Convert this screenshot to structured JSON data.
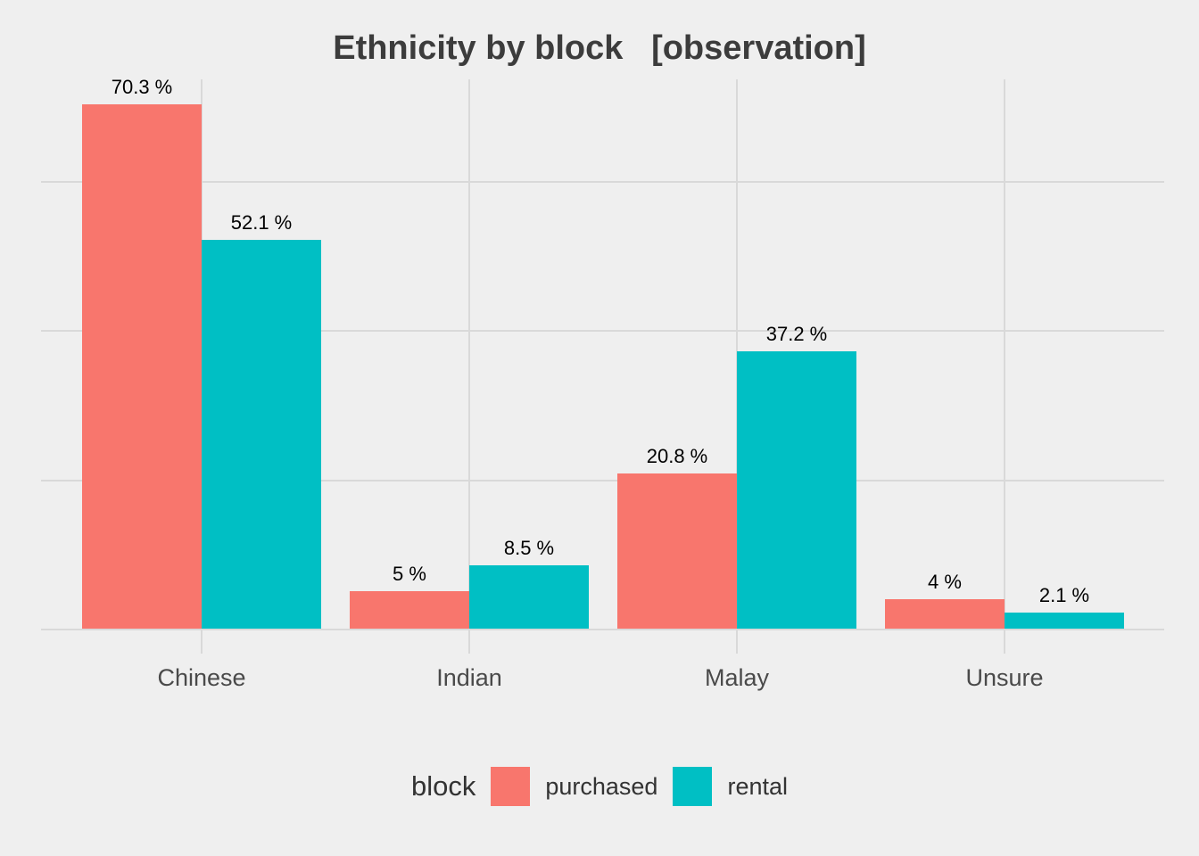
{
  "title": "Ethnicity by block   [observation]",
  "legend": {
    "title": "block",
    "items": [
      {
        "label": "purchased",
        "color": "#F8766D"
      },
      {
        "label": "rental",
        "color": "#00BFC4"
      }
    ]
  },
  "chart_data": {
    "type": "bar",
    "title": "Ethnicity by block   [observation]",
    "categories": [
      "Chinese",
      "Indian",
      "Malay",
      "Unsure"
    ],
    "series": [
      {
        "name": "purchased",
        "color": "#F8766D",
        "values": [
          70.3,
          5,
          20.8,
          4
        ]
      },
      {
        "name": "rental",
        "color": "#00BFC4",
        "values": [
          52.1,
          8.5,
          37.2,
          2.1
        ]
      }
    ],
    "value_labels": [
      [
        "70.3 %",
        "5 %",
        "20.8 %",
        "4 %"
      ],
      [
        "52.1 %",
        "8.5 %",
        "37.2 %",
        "2.1 %"
      ]
    ],
    "unit": "%",
    "ylim": [
      0,
      73.8
    ],
    "gridlines_pct": [
      0,
      20,
      40,
      60
    ],
    "grid": "major-only",
    "legend_position": "bottom",
    "legend_title": "block",
    "colors": {
      "background": "#EFEFEF",
      "gridline": "#D9D9D9",
      "title_text": "#3C3C3C",
      "axis_text": "#4A4A4A",
      "value_label_text": "#000000",
      "legend_text": "#333333"
    }
  }
}
